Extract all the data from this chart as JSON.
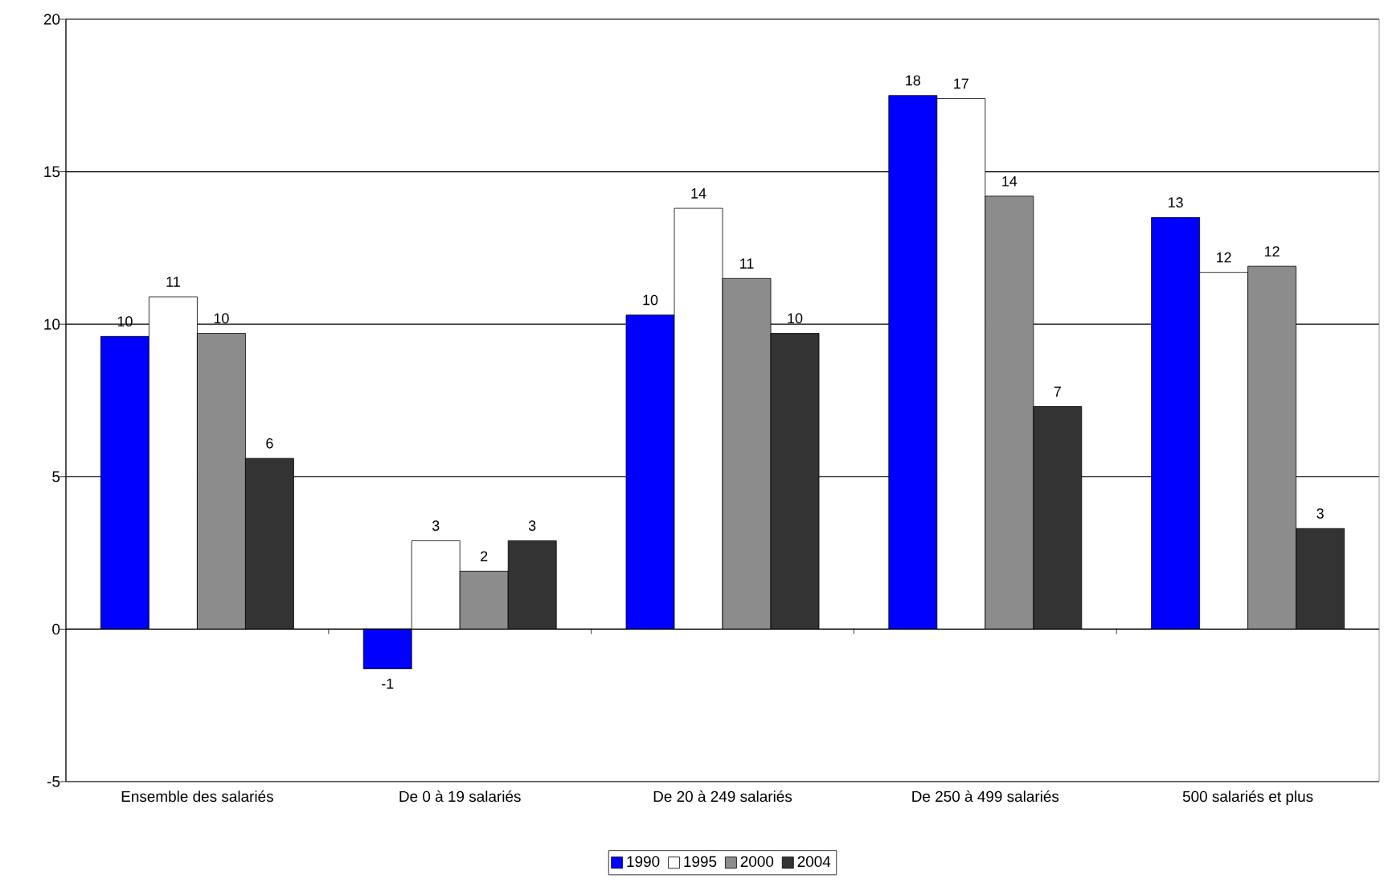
{
  "chart_data": {
    "type": "bar",
    "categories": [
      "Ensemble des salariés",
      "De  0 à 19  salariés",
      "De 20 à 249 salariés",
      "De 250 à 499 salariés",
      "500 salariés et plus"
    ],
    "series": [
      {
        "name": "1990",
        "color": "#0000ff",
        "values": [
          9.6,
          -1.3,
          10.3,
          17.5,
          13.5
        ],
        "value_labels": [
          "10",
          "-1",
          "10",
          "18",
          "13"
        ]
      },
      {
        "name": "1995",
        "color": "#ffffff",
        "values": [
          10.9,
          2.9,
          13.8,
          17.4,
          11.7
        ],
        "value_labels": [
          "11",
          "3",
          "14",
          "17",
          "12"
        ]
      },
      {
        "name": "2000",
        "color": "#8c8c8c",
        "values": [
          9.7,
          1.9,
          11.5,
          14.2,
          11.9
        ],
        "value_labels": [
          "10",
          "2",
          "11",
          "14",
          "12"
        ]
      },
      {
        "name": "2004",
        "color": "#333333",
        "values": [
          5.6,
          2.9,
          9.7,
          7.3,
          3.3
        ],
        "value_labels": [
          "6",
          "3",
          "10",
          "7",
          "3"
        ]
      }
    ],
    "ylim": [
      -5,
      20
    ],
    "yticks": [
      -5,
      0,
      5,
      10,
      15,
      20
    ],
    "grid": "y",
    "legend": "bottom"
  }
}
